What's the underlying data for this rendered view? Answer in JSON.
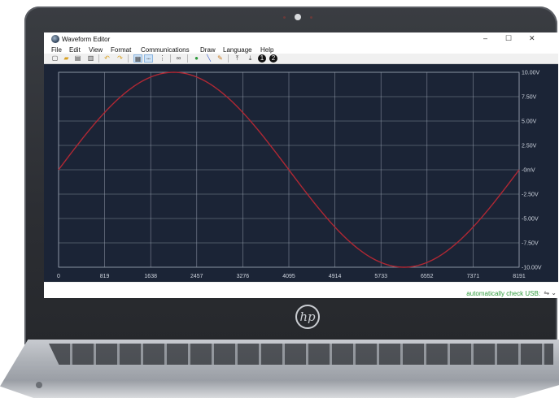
{
  "window": {
    "title": "Waveform Editor",
    "minimize": "–",
    "maximize": "☐",
    "close": "✕"
  },
  "menu": [
    "File",
    "Edit",
    "View",
    "Format",
    "Communications",
    "Draw",
    "Language",
    "Help"
  ],
  "toolbar": {
    "icons": [
      "new-file-icon",
      "open-folder-icon",
      "save-icon",
      "print-icon",
      "undo-icon",
      "redo-icon",
      "grid-icon",
      "dotted-line-icon",
      "zoom-icon",
      "link-icon",
      "point-icon",
      "line-tool-icon",
      "pencil-icon",
      "upload-icon",
      "download-icon",
      "channel-1-icon",
      "channel-2-icon"
    ],
    "channel_1": "1",
    "channel_2": "2"
  },
  "chart_data": {
    "type": "line",
    "x_ticks": [
      "0",
      "819",
      "1638",
      "2457",
      "3276",
      "4095",
      "4914",
      "5733",
      "6552",
      "7371",
      "8191"
    ],
    "y_ticks": [
      "10.00V",
      "7.50V",
      "5.00V",
      "2.50V",
      "-0mV",
      "-2.50V",
      "-5.00V",
      "-7.50V",
      "-10.00V"
    ],
    "xlim": [
      0,
      8191
    ],
    "ylim": [
      -10,
      10
    ],
    "grid": true,
    "series": [
      {
        "color": "#b02834",
        "shape": "sine",
        "amplitude": 10,
        "period": 8191,
        "phase": 0
      }
    ]
  },
  "status": {
    "text": "automatically check USB:",
    "icons": "⇋ ⌄"
  },
  "colors": {
    "plot_bg": "#1b2436",
    "grid": "#9aa3b2",
    "wave": "#b02834",
    "status": "#2e9b3c"
  }
}
